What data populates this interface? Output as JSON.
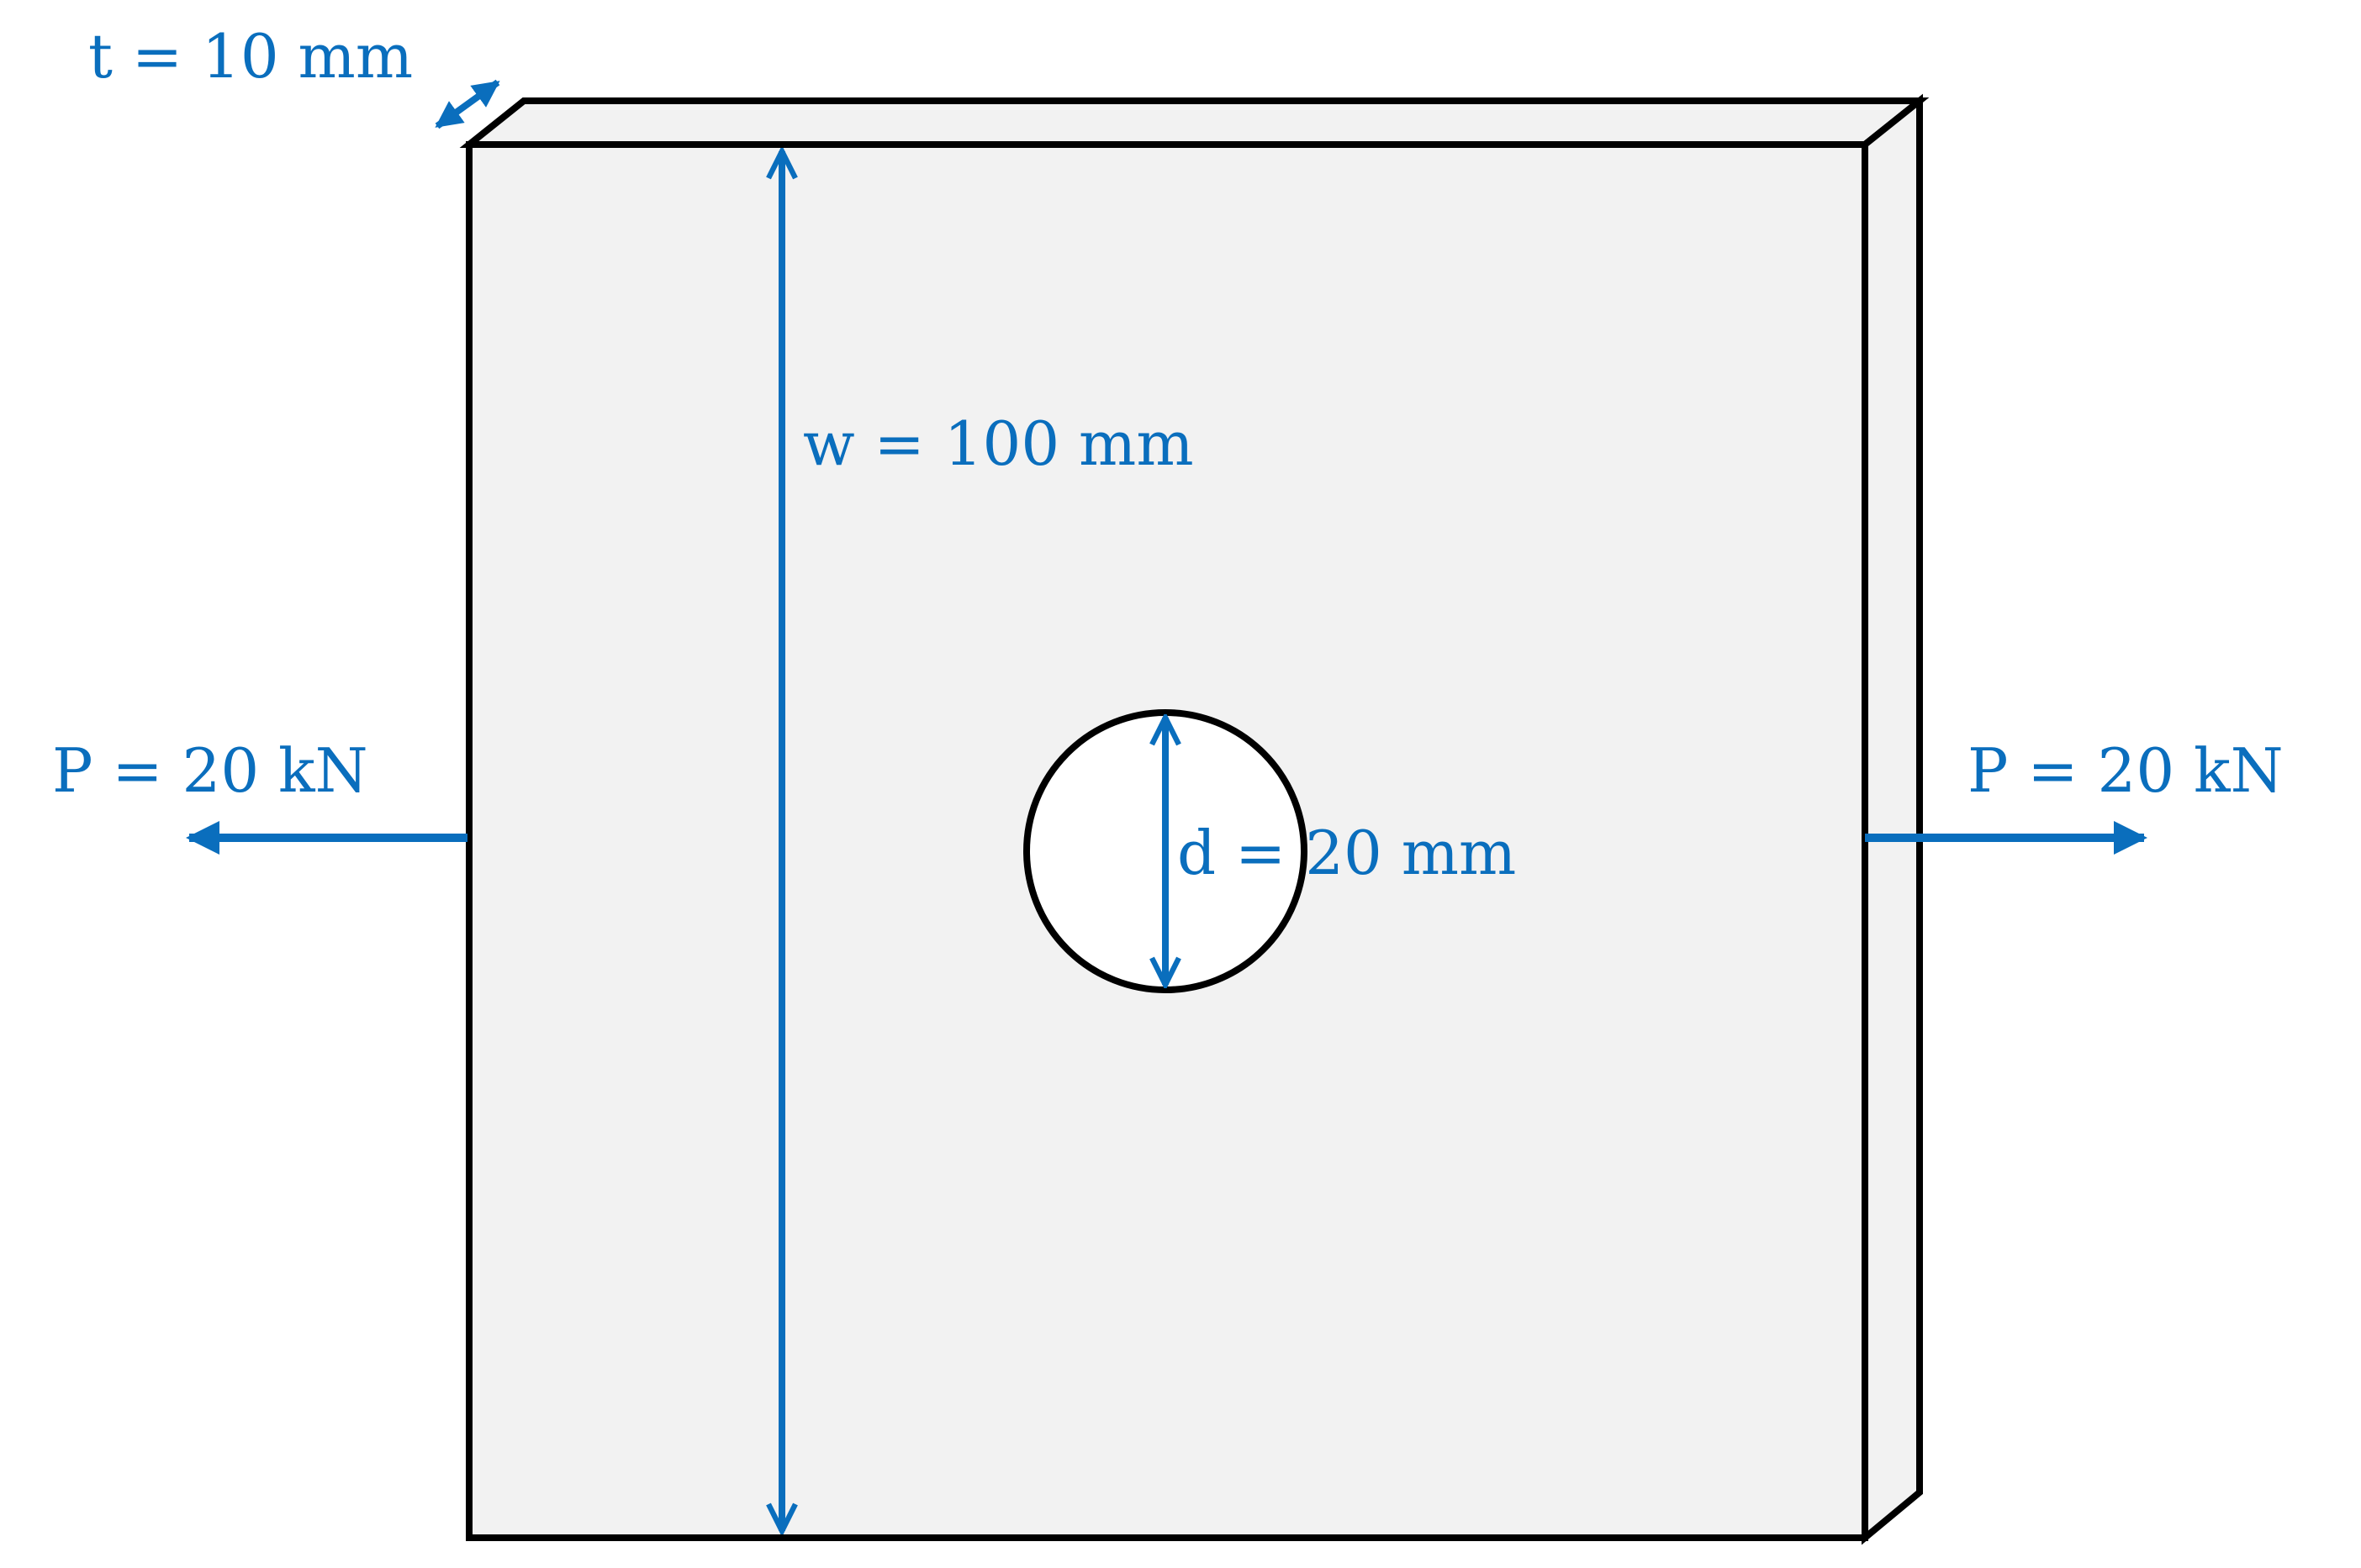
{
  "labels": {
    "thickness": "t = 10 mm",
    "width": "w = 100 mm",
    "diameter": "d = 20 mm",
    "load_left": "P = 20 kN",
    "load_right": "P = 20 kN"
  },
  "colors": {
    "annotation": "#0A6EBD",
    "plate_fill": "#F2F2F2",
    "outline": "#000000",
    "hole_fill": "#FFFFFF"
  }
}
